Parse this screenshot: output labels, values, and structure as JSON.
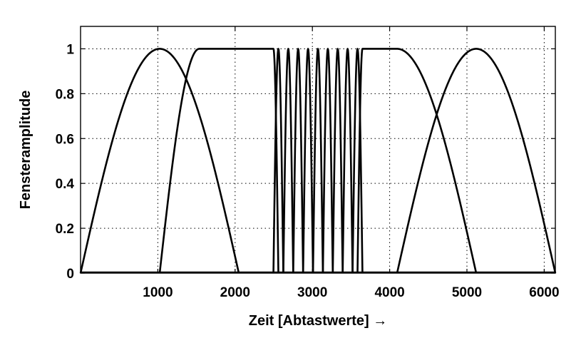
{
  "chart_data": {
    "type": "line",
    "title": "",
    "xlabel": "Zeit [Abtastwerte] →",
    "ylabel": "Fensteramplitude",
    "xlim": [
      0,
      6144
    ],
    "ylim": [
      0,
      1.1
    ],
    "xticks": [
      1000,
      2000,
      3000,
      4000,
      5000,
      6000
    ],
    "yticks": [
      0,
      0.2,
      0.4,
      0.6,
      0.8,
      1
    ],
    "ytick_labels": [
      "0",
      "0.2",
      "0.4",
      "0.6",
      "0.8",
      "1"
    ],
    "grid": true,
    "series": [
      {
        "shape": "sine",
        "x": [
          0,
          1024,
          2048
        ]
      },
      {
        "shape": "sine-flat-sine",
        "x": [
          1024,
          1536,
          2496,
          2560
        ]
      },
      {
        "shape": "sine",
        "x": [
          2496,
          2560,
          2624
        ]
      },
      {
        "shape": "sine",
        "x": [
          2624,
          2688,
          2752
        ]
      },
      {
        "shape": "sine",
        "x": [
          2752,
          2816,
          2880
        ]
      },
      {
        "shape": "sine",
        "x": [
          2880,
          2944,
          3008
        ]
      },
      {
        "shape": "sine",
        "x": [
          3008,
          3072,
          3136
        ]
      },
      {
        "shape": "sine",
        "x": [
          3136,
          3200,
          3264
        ]
      },
      {
        "shape": "sine",
        "x": [
          3264,
          3328,
          3392
        ]
      },
      {
        "shape": "sine",
        "x": [
          3392,
          3456,
          3520
        ]
      },
      {
        "shape": "sine",
        "x": [
          3520,
          3584,
          3648
        ]
      },
      {
        "shape": "sine-flat-sine",
        "x": [
          3584,
          3648,
          4096,
          5120
        ]
      },
      {
        "shape": "sine",
        "x": [
          4096,
          5120,
          6144
        ]
      }
    ]
  }
}
